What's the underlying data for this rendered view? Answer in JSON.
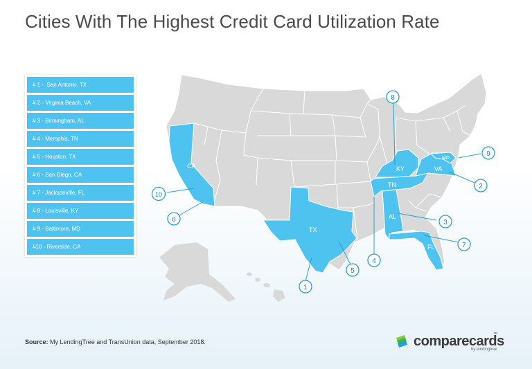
{
  "title": "Cities With The Highest Credit Card Utilization Rate",
  "legend": [
    {
      "rank": "# 1 -",
      "city": "San Antonio, TX"
    },
    {
      "rank": "# 2 -",
      "city": "Virginia Beach, VA"
    },
    {
      "rank": "# 3 -",
      "city": "Birmingham, AL"
    },
    {
      "rank": "# 4 -",
      "city": "Memphis, TN"
    },
    {
      "rank": "# 5 -",
      "city": "Houston, TX"
    },
    {
      "rank": "# 6 -",
      "city": "San Diego, CA"
    },
    {
      "rank": "# 7 -",
      "city": "Jacksonville, FL"
    },
    {
      "rank": "# 8 -",
      "city": "Louisville, KY"
    },
    {
      "rank": "# 9 -",
      "city": "Baltimore, MD"
    },
    {
      "rank": "#10 -",
      "city": "Riverside, CA"
    }
  ],
  "states": {
    "ca": "CA",
    "tx": "TX",
    "ky": "KY",
    "tn": "TN",
    "va": "VA",
    "md": "MD",
    "al": "AL",
    "fl": "FL"
  },
  "markers": [
    "1",
    "2",
    "3",
    "4",
    "5",
    "6",
    "7",
    "8",
    "9",
    "10"
  ],
  "source": {
    "label": "Source:",
    "text": "My LendingTree and TransUnion data, September 2018."
  },
  "brand": {
    "name": "comparecards",
    "tm": "™",
    "sub": "by lendingtree"
  },
  "colors": {
    "highlight": "#4fc3ef",
    "state_fill": "#d9d9d9",
    "state_stroke": "#ffffff",
    "marker_stroke": "#2a9fd0",
    "marker_text": "#1d7fae",
    "title": "#4a4a4a"
  }
}
